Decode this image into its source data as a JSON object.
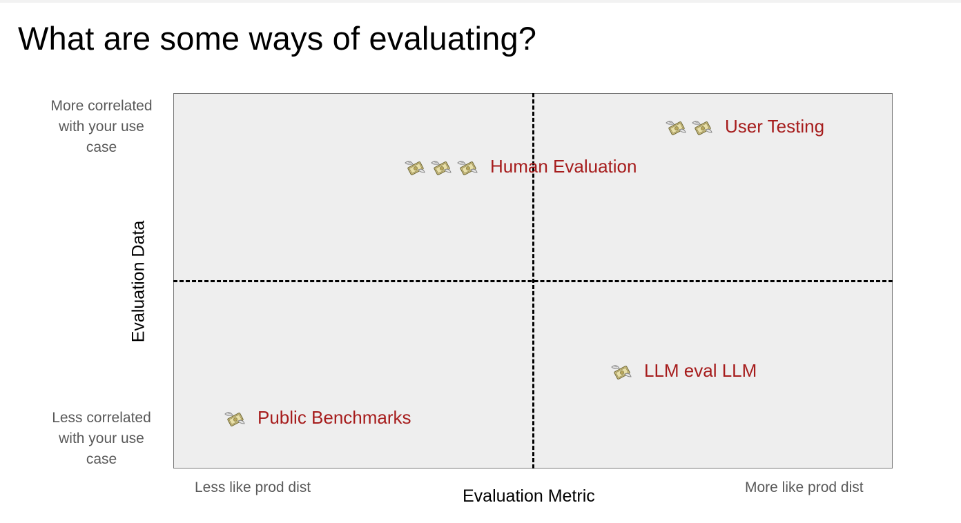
{
  "slide": {
    "title": "What are some ways of evaluating?"
  },
  "axes": {
    "y_title": "Evaluation Data",
    "x_title": "Evaluation Metric",
    "y_top_label": [
      "More correlated",
      "with your use",
      "case"
    ],
    "y_bottom_label": [
      "Less correlated",
      "with your use",
      "case"
    ],
    "x_left_label": "Less like prod dist",
    "x_right_label": "More like prod dist"
  },
  "items": [
    {
      "label": "User Testing",
      "cost_icons": 2,
      "icon": "money-with-wings-icon"
    },
    {
      "label": "Human Evaluation",
      "cost_icons": 3,
      "icon": "money-with-wings-icon"
    },
    {
      "label": "LLM eval LLM",
      "cost_icons": 1,
      "icon": "money-with-wings-icon"
    },
    {
      "label": "Public Benchmarks",
      "cost_icons": 1,
      "icon": "money-with-wings-icon"
    }
  ],
  "colors": {
    "item_label": "#a61c1c",
    "quadrant_bg": "#eeeeee"
  }
}
